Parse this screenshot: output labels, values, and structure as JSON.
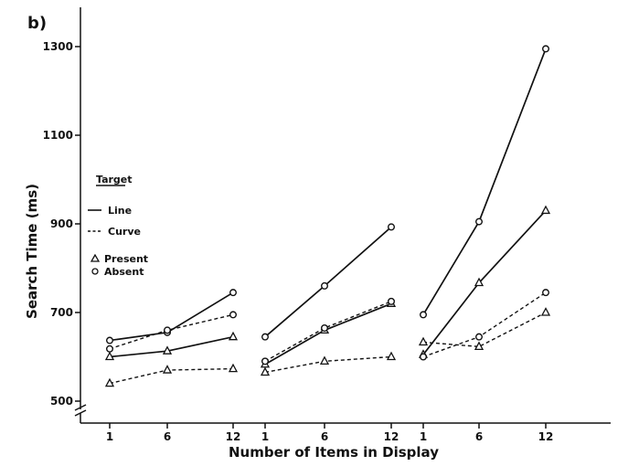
{
  "panel_label": "b)",
  "chart_data": {
    "type": "line",
    "xlabel": "Number of Items in Display",
    "ylabel": "Search Time (ms)",
    "ylim": [
      480,
      1320
    ],
    "yticks": [
      500,
      700,
      900,
      1100,
      1300
    ],
    "grid": false,
    "legend_placement": "left",
    "legend": {
      "title": "Target",
      "line_label": "Line",
      "curve_label": "Curve",
      "present_label": "Present",
      "absent_label": "Absent"
    },
    "groups": [
      {
        "x": [
          1,
          6,
          12
        ],
        "series": [
          {
            "target": "Line",
            "trial": "Absent",
            "values": [
              637,
              655,
              745
            ]
          },
          {
            "target": "Line",
            "trial": "Present",
            "values": [
              600,
              613,
              645
            ]
          },
          {
            "target": "Curve",
            "trial": "Absent",
            "values": [
              618,
              660,
              695
            ]
          },
          {
            "target": "Curve",
            "trial": "Present",
            "values": [
              540,
              570,
              573
            ]
          }
        ]
      },
      {
        "x": [
          1,
          6,
          12
        ],
        "series": [
          {
            "target": "Line",
            "trial": "Absent",
            "values": [
              645,
              760,
              893
            ]
          },
          {
            "target": "Line",
            "trial": "Present",
            "values": [
              583,
              660,
              720
            ]
          },
          {
            "target": "Curve",
            "trial": "Absent",
            "values": [
              590,
              665,
              725
            ]
          },
          {
            "target": "Curve",
            "trial": "Present",
            "values": [
              565,
              590,
              600
            ]
          }
        ]
      },
      {
        "x": [
          1,
          6,
          12
        ],
        "series": [
          {
            "target": "Line",
            "trial": "Absent",
            "values": [
              695,
              905,
              1295
            ]
          },
          {
            "target": "Line",
            "trial": "Present",
            "values": [
              605,
              767,
              930
            ]
          },
          {
            "target": "Curve",
            "trial": "Absent",
            "values": [
              600,
              645,
              745
            ]
          },
          {
            "target": "Curve",
            "trial": "Present",
            "values": [
              633,
              623,
              700
            ]
          }
        ]
      }
    ]
  }
}
